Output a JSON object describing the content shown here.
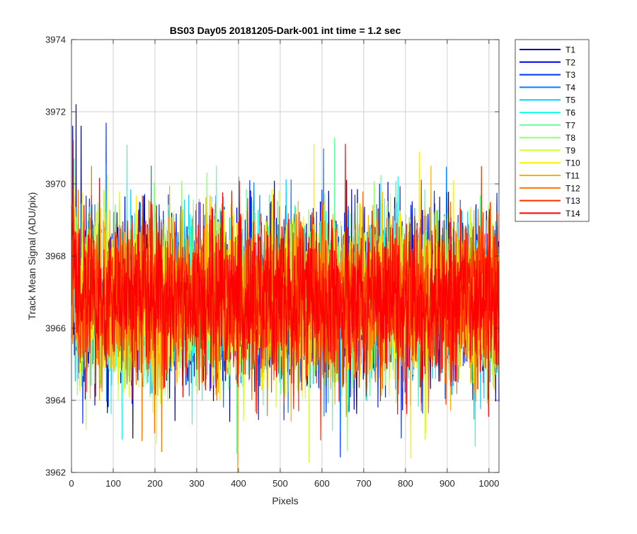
{
  "colors": {
    "background": "#ffffff",
    "axes": "#262626",
    "grid": "#d0d0d0"
  },
  "chart_data": {
    "type": "line",
    "title": "BS03 Day05 20181205-Dark-001 int time = 1.2 sec",
    "xlabel": "Pixels",
    "ylabel": "Track Mean Signal (ADU/pix)",
    "xlim": [
      0,
      1024
    ],
    "ylim": [
      3962,
      3974
    ],
    "xticks": [
      0,
      100,
      200,
      300,
      400,
      500,
      600,
      700,
      800,
      900,
      1000
    ],
    "yticks": [
      3962,
      3964,
      3966,
      3968,
      3970,
      3972,
      3974
    ],
    "grid": true,
    "legend_position": "outside-top-right",
    "n_points_per_series": 1024,
    "series_stats": {
      "approx_mean": 3966.8,
      "approx_std": 1.1,
      "approx_min": 3962.0,
      "approx_max": 3972.2
    },
    "series": [
      {
        "name": "T1",
        "color": "#00008f"
      },
      {
        "name": "T2",
        "color": "#0000df"
      },
      {
        "name": "T3",
        "color": "#0030ff"
      },
      {
        "name": "T4",
        "color": "#0080ff"
      },
      {
        "name": "T5",
        "color": "#00cfff"
      },
      {
        "name": "T6",
        "color": "#20ffdf"
      },
      {
        "name": "T7",
        "color": "#60ffa0"
      },
      {
        "name": "T8",
        "color": "#8fff70"
      },
      {
        "name": "T9",
        "color": "#cfff30"
      },
      {
        "name": "T10",
        "color": "#ffef00"
      },
      {
        "name": "T11",
        "color": "#ffaf00"
      },
      {
        "name": "T12",
        "color": "#ff7000"
      },
      {
        "name": "T13",
        "color": "#ff3000"
      },
      {
        "name": "T14",
        "color": "#ff0000"
      }
    ],
    "notable_spikes": [
      {
        "series": "T2",
        "x": 10,
        "y": 3972.2
      },
      {
        "series": "T1",
        "x": 2,
        "y": 3971.6
      },
      {
        "series": "T1",
        "x": 22,
        "y": 3971.6
      },
      {
        "series": "T14",
        "x": 3,
        "y": 3971.2
      },
      {
        "series": "T11",
        "x": 397,
        "y": 3962.0
      },
      {
        "series": "T9",
        "x": 203,
        "y": 3962.8
      },
      {
        "series": "T10",
        "x": 811,
        "y": 3962.4
      },
      {
        "series": "T14",
        "x": 655,
        "y": 3971.1
      },
      {
        "series": "T10",
        "x": 580,
        "y": 3971.1
      },
      {
        "series": "T13",
        "x": 596,
        "y": 3962.9
      },
      {
        "series": "T8",
        "x": 660,
        "y": 3962.6
      }
    ]
  }
}
